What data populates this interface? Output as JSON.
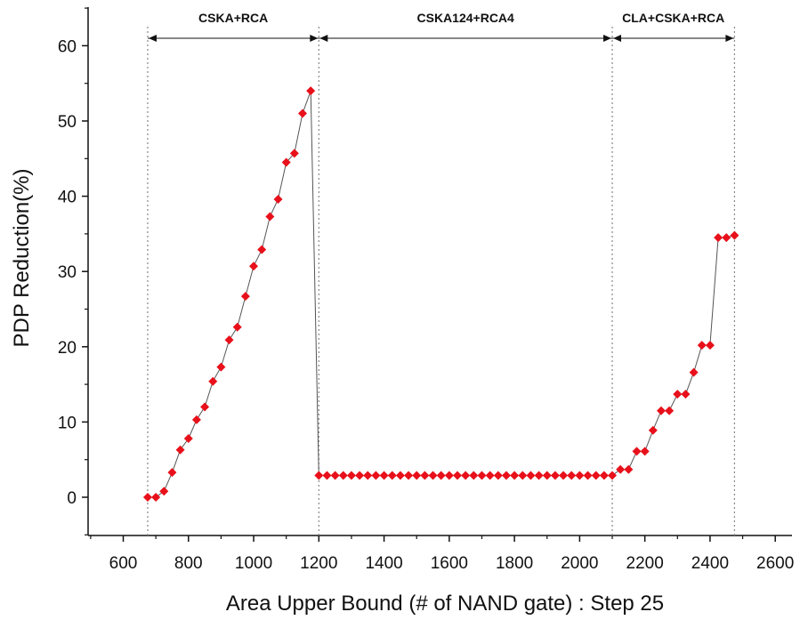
{
  "chart_data": {
    "type": "scatter",
    "title": "",
    "xlabel": "Area Upper Bound (# of NAND gate) : Step 25",
    "ylabel": "PDP Reduction(%)",
    "xlim": [
      500,
      2650
    ],
    "ylim": [
      -5,
      65
    ],
    "xticks": [
      600,
      800,
      1000,
      1200,
      1400,
      1600,
      1800,
      2000,
      2200,
      2400,
      2600
    ],
    "yticks": [
      0,
      10,
      20,
      30,
      40,
      50,
      60
    ],
    "grid": false,
    "marker_color": "#e8101a",
    "line_color": "#555555",
    "regions": [
      {
        "label": "CSKA+RCA",
        "start": 675,
        "end": 1200
      },
      {
        "label": "CSKA124+RCA4",
        "start": 1200,
        "end": 2100
      },
      {
        "label": "CLA+CSKA+RCA",
        "start": 2100,
        "end": 2475
      }
    ],
    "boundaries": [
      675,
      1200,
      2100,
      2475
    ],
    "series": [
      {
        "x": [
          675,
          700,
          725,
          750,
          775,
          800,
          825,
          850,
          875,
          900,
          925,
          950,
          975,
          1000,
          1025,
          1050,
          1075,
          1100,
          1125,
          1150,
          1175,
          1200,
          1225,
          1250,
          1275,
          1300,
          1325,
          1350,
          1375,
          1400,
          1425,
          1450,
          1475,
          1500,
          1525,
          1550,
          1575,
          1600,
          1625,
          1650,
          1675,
          1700,
          1725,
          1750,
          1775,
          1800,
          1825,
          1850,
          1875,
          1900,
          1925,
          1950,
          1975,
          2000,
          2025,
          2050,
          2075,
          2100,
          2125,
          2150,
          2175,
          2200,
          2225,
          2250,
          2275,
          2300,
          2325,
          2350,
          2375,
          2400,
          2425,
          2450,
          2475
        ],
        "y": [
          0,
          0,
          0.8,
          3.3,
          6.3,
          7.8,
          10.3,
          12.0,
          15.4,
          17.3,
          20.9,
          22.6,
          26.7,
          30.7,
          32.9,
          37.3,
          39.6,
          44.5,
          45.7,
          51.0,
          54.0,
          2.9,
          2.9,
          2.9,
          2.9,
          2.9,
          2.9,
          2.9,
          2.9,
          2.9,
          2.9,
          2.9,
          2.9,
          2.9,
          2.9,
          2.9,
          2.9,
          2.9,
          2.9,
          2.9,
          2.9,
          2.9,
          2.9,
          2.9,
          2.9,
          2.9,
          2.9,
          2.9,
          2.9,
          2.9,
          2.9,
          2.9,
          2.9,
          2.9,
          2.9,
          2.9,
          2.9,
          2.9,
          3.7,
          3.7,
          6.1,
          6.1,
          8.9,
          11.5,
          11.5,
          13.7,
          13.7,
          16.6,
          20.2,
          20.2,
          34.5,
          34.5,
          34.8
        ]
      }
    ]
  }
}
